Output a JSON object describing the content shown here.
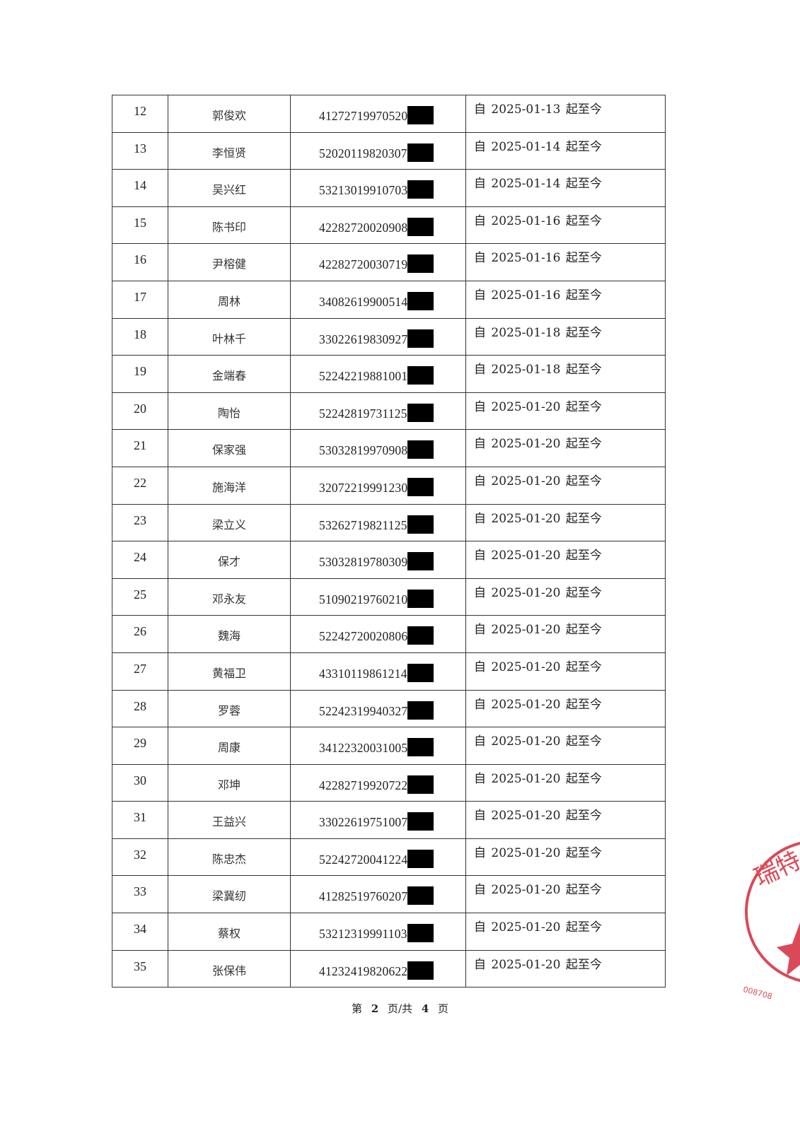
{
  "table": {
    "prefix": "自",
    "suffix": "起至今",
    "rows": [
      {
        "no": "12",
        "name": "郭俊欢",
        "id": "41272719970520",
        "date": "2025-01-13"
      },
      {
        "no": "13",
        "name": "李恒贤",
        "id": "52020119820307",
        "date": "2025-01-14"
      },
      {
        "no": "14",
        "name": "吴兴红",
        "id": "53213019910703",
        "date": "2025-01-14"
      },
      {
        "no": "15",
        "name": "陈书印",
        "id": "42282720020908",
        "date": "2025-01-16"
      },
      {
        "no": "16",
        "name": "尹榕健",
        "id": "42282720030719",
        "date": "2025-01-16"
      },
      {
        "no": "17",
        "name": "周林",
        "id": "34082619900514",
        "date": "2025-01-16"
      },
      {
        "no": "18",
        "name": "叶林千",
        "id": "33022619830927",
        "date": "2025-01-18"
      },
      {
        "no": "19",
        "name": "金端春",
        "id": "52242219881001",
        "date": "2025-01-18"
      },
      {
        "no": "20",
        "name": "陶怡",
        "id": "52242819731125",
        "date": "2025-01-20"
      },
      {
        "no": "21",
        "name": "保家强",
        "id": "53032819970908",
        "date": "2025-01-20"
      },
      {
        "no": "22",
        "name": "施海洋",
        "id": "32072219991230",
        "date": "2025-01-20"
      },
      {
        "no": "23",
        "name": "梁立义",
        "id": "53262719821125",
        "date": "2025-01-20"
      },
      {
        "no": "24",
        "name": "保才",
        "id": "53032819780309",
        "date": "2025-01-20"
      },
      {
        "no": "25",
        "name": "邓永友",
        "id": "51090219760210",
        "date": "2025-01-20"
      },
      {
        "no": "26",
        "name": "魏海",
        "id": "52242720020806",
        "date": "2025-01-20"
      },
      {
        "no": "27",
        "name": "黄福卫",
        "id": "43310119861214",
        "date": "2025-01-20"
      },
      {
        "no": "28",
        "name": "罗蓉",
        "id": "52242319940327",
        "date": "2025-01-20"
      },
      {
        "no": "29",
        "name": "周康",
        "id": "34122320031005",
        "date": "2025-01-20"
      },
      {
        "no": "30",
        "name": "邓坤",
        "id": "42282719920722",
        "date": "2025-01-20"
      },
      {
        "no": "31",
        "name": "王益兴",
        "id": "33022619751007",
        "date": "2025-01-20"
      },
      {
        "no": "32",
        "name": "陈忠杰",
        "id": "52242720041224",
        "date": "2025-01-20"
      },
      {
        "no": "33",
        "name": "梁冀纫",
        "id": "41282519760207",
        "date": "2025-01-20"
      },
      {
        "no": "34",
        "name": "蔡权",
        "id": "53212319991103",
        "date": "2025-01-20"
      },
      {
        "no": "35",
        "name": "张保伟",
        "id": "41232419820622",
        "date": "2025-01-20"
      }
    ]
  },
  "footer": {
    "page_prefix": "第",
    "page": "2",
    "page_mid": "页/共",
    "total": "4",
    "page_suffix": "页"
  },
  "stamp": {
    "text": "瑞特",
    "code": "008708",
    "color": "#d42a3a"
  }
}
